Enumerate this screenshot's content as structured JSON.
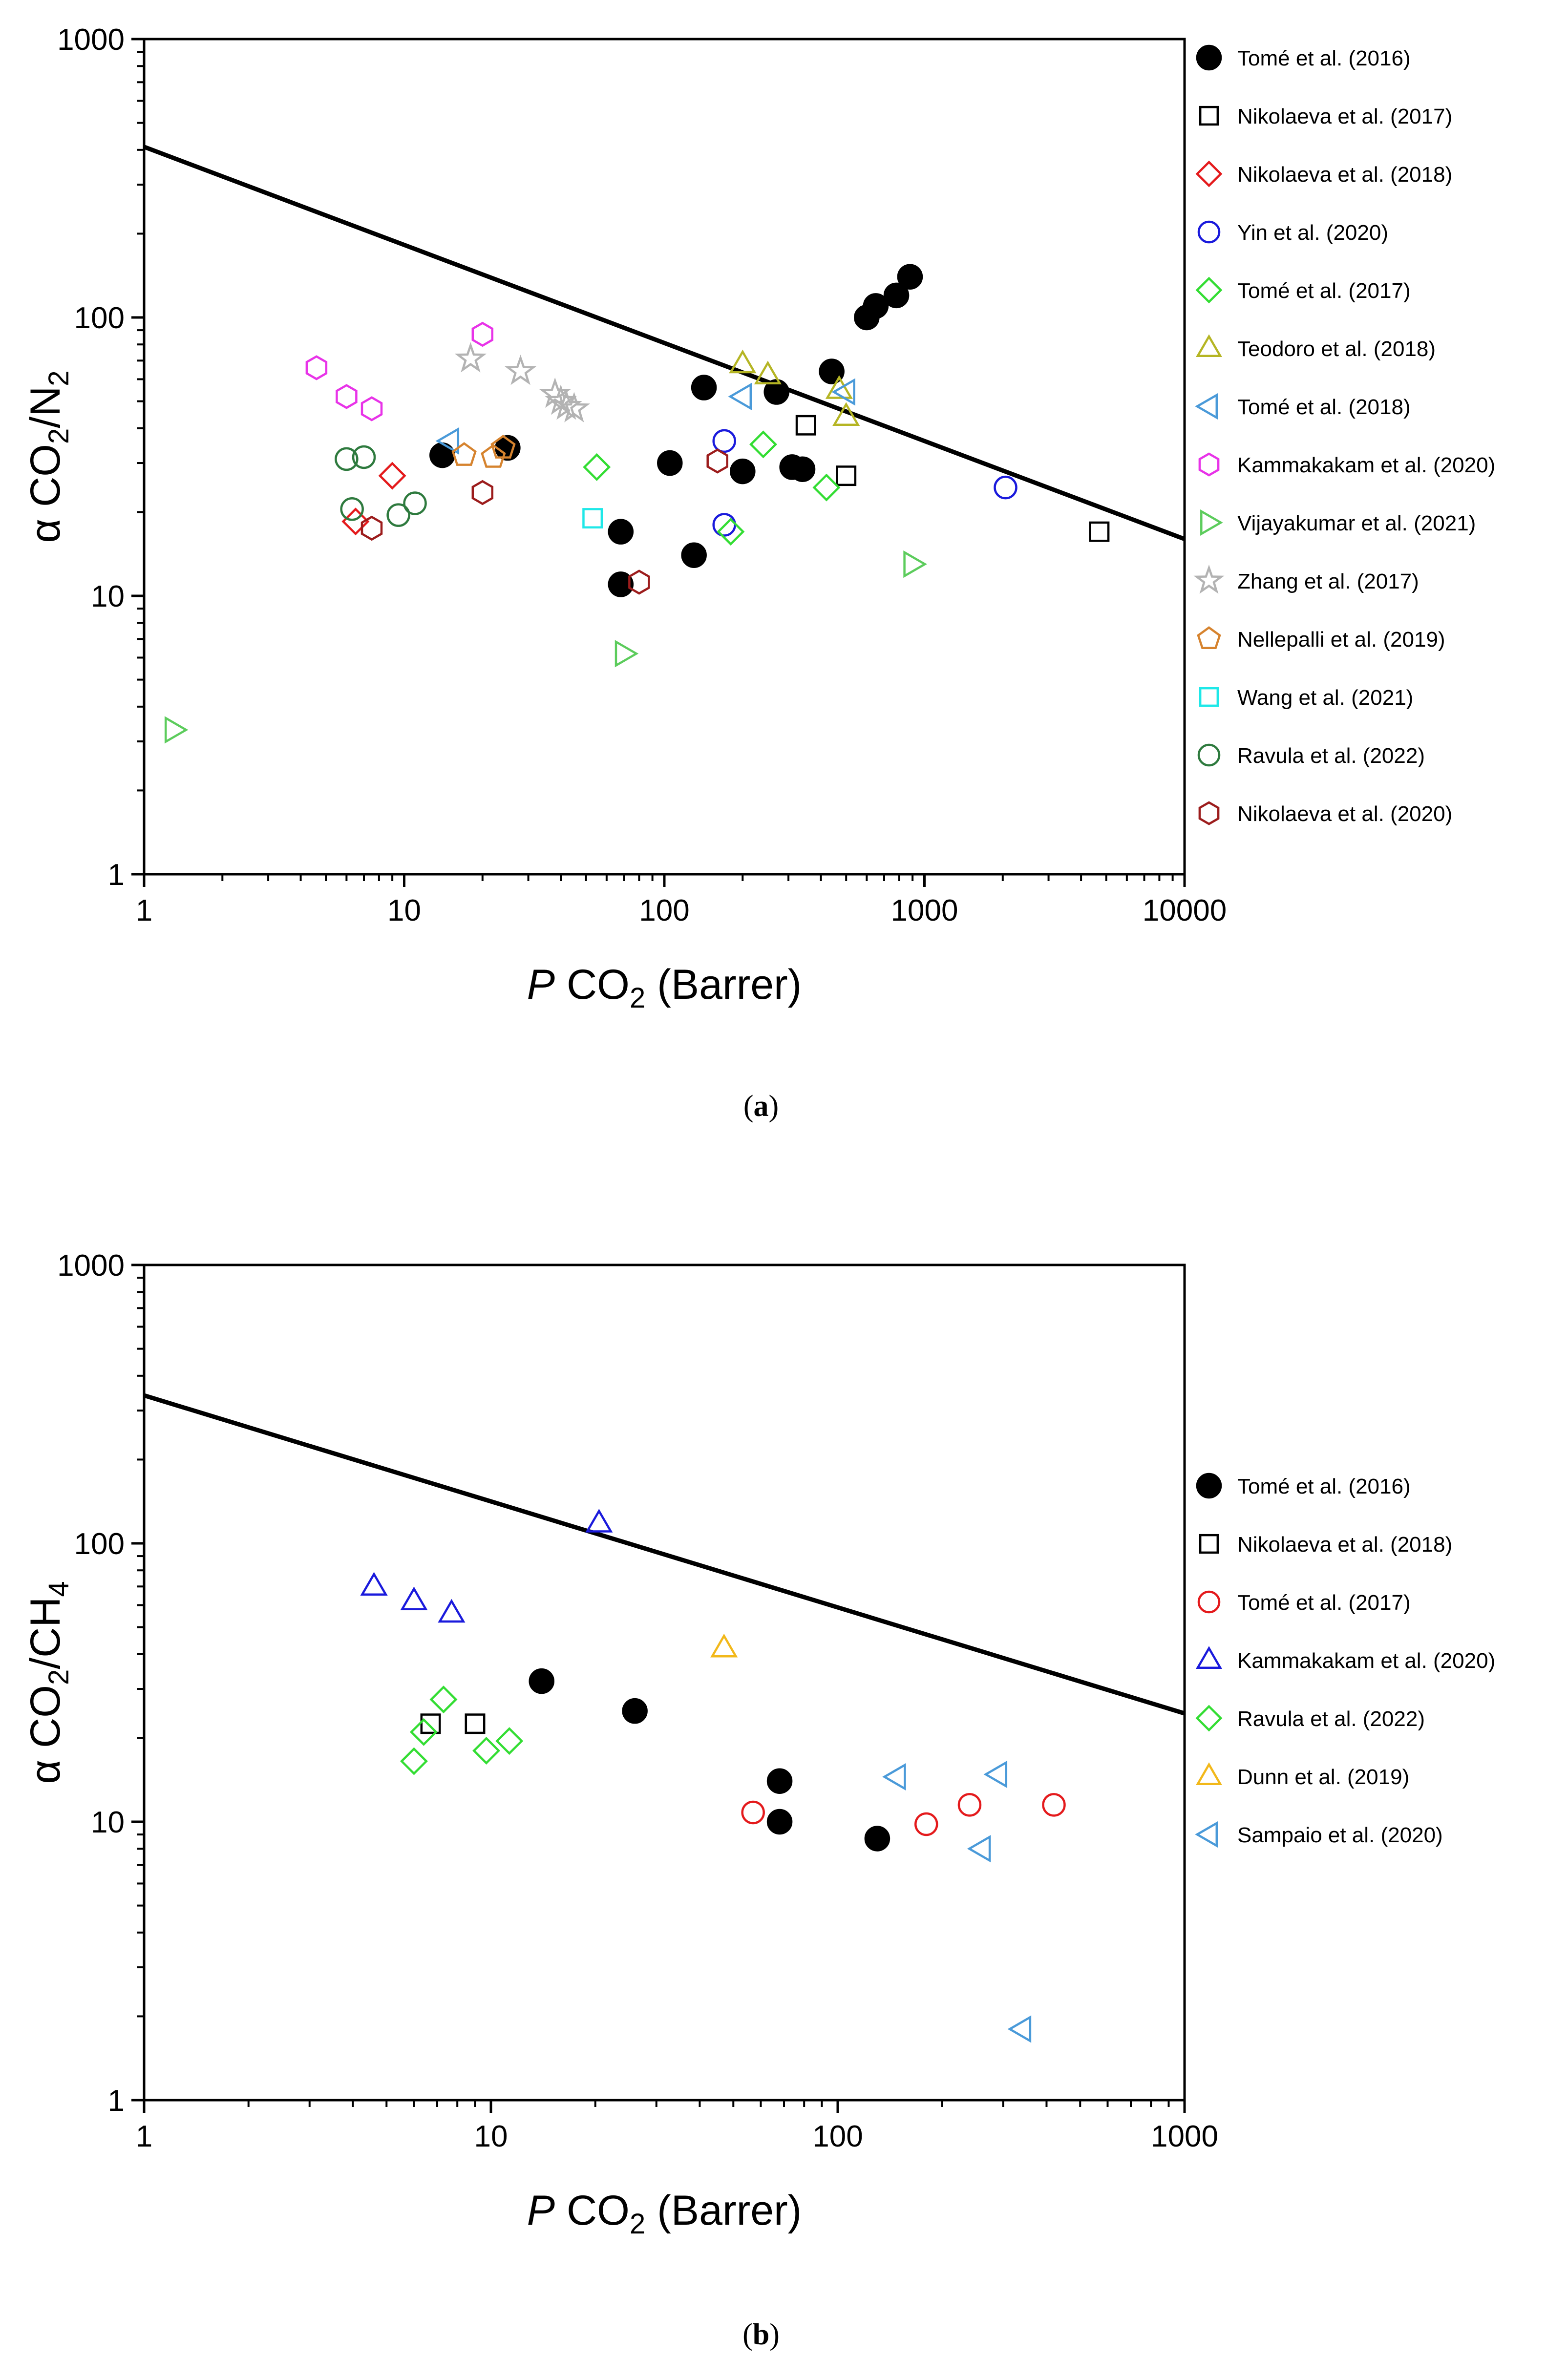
{
  "chart_data": [
    {
      "type": "scatter",
      "panel_label": "(a)",
      "panel_letter": "a",
      "xlabel": {
        "italic": "P",
        "main": " CO",
        "sub": "2",
        "rest": " (Barrer)"
      },
      "ylabel": {
        "prefix": "α CO",
        "sub1": "2",
        "mid": "/N",
        "sub2": "2"
      },
      "xscale": "log",
      "yscale": "log",
      "xlim": [
        1,
        10000
      ],
      "ylim": [
        1,
        1000
      ],
      "xticks": [
        1,
        10,
        100,
        1000,
        10000
      ],
      "xtick_labels": [
        "1",
        "10",
        "100",
        "1000",
        "10000"
      ],
      "yticks": [
        1,
        10,
        100,
        1000
      ],
      "ytick_labels": [
        "1",
        "10",
        "100",
        "1000"
      ],
      "upper_bound": [
        [
          1,
          410
        ],
        [
          10000,
          16
        ]
      ],
      "legend_position": "right, outside",
      "series": [
        {
          "name": "Tomé et al. (2016)",
          "marker": "circle",
          "color": "#000000",
          "filled": true,
          "points": [
            [
              14,
              32
            ],
            [
              25,
              34
            ],
            [
              68,
              17
            ],
            [
              68,
              11
            ],
            [
              105,
              30
            ],
            [
              130,
              14
            ],
            [
              142,
              56
            ],
            [
              200,
              28
            ],
            [
              270,
              54
            ],
            [
              310,
              29
            ],
            [
              340,
              28.5
            ],
            [
              440,
              64
            ],
            [
              600,
              100
            ],
            [
              650,
              110
            ],
            [
              780,
              120
            ],
            [
              880,
              140
            ]
          ]
        },
        {
          "name": "Nikolaeva et al. (2017)",
          "marker": "square",
          "color": "#000000",
          "filled": false,
          "points": [
            [
              350,
              41
            ],
            [
              500,
              27
            ],
            [
              4700,
              17
            ]
          ]
        },
        {
          "name": "Nikolaeva et al. (2018)",
          "marker": "diamond",
          "color": "#e41a1c",
          "filled": false,
          "points": [
            [
              6.5,
              18.5
            ],
            [
              9,
              27
            ]
          ]
        },
        {
          "name": "Yin et al. (2020)",
          "marker": "circle",
          "color": "#1a1adc",
          "filled": false,
          "points": [
            [
              170,
              36
            ],
            [
              170,
              18
            ],
            [
              2050,
              24.5
            ]
          ]
        },
        {
          "name": "Tomé et al. (2017)",
          "marker": "diamond",
          "color": "#33dd33",
          "filled": false,
          "points": [
            [
              55,
              29
            ],
            [
              180,
              17
            ],
            [
              240,
              35
            ],
            [
              420,
              24.5
            ]
          ]
        },
        {
          "name": "Teodoro et al. (2018)",
          "marker": "triangle-up",
          "color": "#b5b524",
          "filled": false,
          "points": [
            [
              200,
              68
            ],
            [
              250,
              62
            ],
            [
              470,
              55
            ],
            [
              500,
              44
            ]
          ]
        },
        {
          "name": "Tomé et al. (2018)",
          "marker": "triangle-left",
          "color": "#4a9ad9",
          "filled": false,
          "points": [
            [
              15,
              36
            ],
            [
              200,
              52
            ],
            [
              500,
              54
            ]
          ]
        },
        {
          "name": "Kammakakam et al. (2020)",
          "marker": "hexagon",
          "color": "#e833e8",
          "filled": false,
          "points": [
            [
              4.6,
              66
            ],
            [
              6,
              52
            ],
            [
              7.5,
              47
            ],
            [
              20,
              87
            ]
          ]
        },
        {
          "name": "Vijayakumar et al. (2021)",
          "marker": "triangle-right",
          "color": "#5ccc5c",
          "filled": false,
          "points": [
            [
              1.3,
              3.3
            ],
            [
              70,
              6.2
            ],
            [
              900,
              13
            ]
          ]
        },
        {
          "name": "Zhang et al. (2017)",
          "marker": "star",
          "color": "#b3b3b3",
          "filled": false,
          "points": [
            [
              18,
              71
            ],
            [
              28,
              64
            ],
            [
              38,
              53
            ],
            [
              40,
              50
            ],
            [
              42,
              48
            ],
            [
              45,
              47
            ]
          ]
        },
        {
          "name": "Nellepalli et al. (2019)",
          "marker": "pentagon",
          "color": "#d6832e",
          "filled": false,
          "points": [
            [
              17,
              32
            ],
            [
              22,
              31.5
            ],
            [
              24,
              34
            ]
          ]
        },
        {
          "name": "Wang et al. (2021)",
          "marker": "square",
          "color": "#1ee8e8",
          "filled": false,
          "points": [
            [
              53,
              19
            ]
          ]
        },
        {
          "name": "Ravula et al. (2022)",
          "marker": "circle",
          "color": "#2e7a3e",
          "filled": false,
          "points": [
            [
              6,
              31
            ],
            [
              7,
              31.5
            ],
            [
              6.3,
              20.5
            ],
            [
              9.5,
              19.5
            ],
            [
              11,
              21.5
            ]
          ]
        },
        {
          "name": "Nikolaeva et al. (2020)",
          "marker": "hexagon",
          "color": "#9c1c1c",
          "filled": false,
          "points": [
            [
              7.5,
              17.5
            ],
            [
              20,
              23.5
            ],
            [
              80,
              11.2
            ],
            [
              160,
              30.5
            ]
          ]
        }
      ]
    },
    {
      "type": "scatter",
      "panel_label": "(b)",
      "panel_letter": "b",
      "xlabel": {
        "italic": "P",
        "main": " CO",
        "sub": "2",
        "rest": " (Barrer)"
      },
      "ylabel": {
        "prefix": "α CO",
        "sub1": "2",
        "mid": "/CH",
        "sub2": "4"
      },
      "xscale": "log",
      "yscale": "log",
      "xlim": [
        1,
        1000
      ],
      "ylim": [
        1,
        1000
      ],
      "xticks": [
        1,
        10,
        100,
        1000
      ],
      "xtick_labels": [
        "1",
        "10",
        "100",
        "1000"
      ],
      "yticks": [
        1,
        10,
        100,
        1000
      ],
      "ytick_labels": [
        "1",
        "10",
        "100",
        "1000"
      ],
      "upper_bound": [
        [
          1,
          340
        ],
        [
          1000,
          24.5
        ]
      ],
      "legend_position": "right, outside",
      "series": [
        {
          "name": "Tomé et al. (2016)",
          "marker": "circle",
          "color": "#000000",
          "filled": true,
          "points": [
            [
              14,
              32
            ],
            [
              26,
              25
            ],
            [
              68,
              14
            ],
            [
              68,
              10
            ],
            [
              130,
              8.7
            ]
          ]
        },
        {
          "name": "Nikolaeva et al. (2018)",
          "marker": "square",
          "color": "#000000",
          "filled": false,
          "points": [
            [
              6.7,
              22.5
            ],
            [
              9,
              22.5
            ]
          ]
        },
        {
          "name": "Tomé et al. (2017)",
          "marker": "circle",
          "color": "#e41a1c",
          "filled": false,
          "points": [
            [
              57,
              10.8
            ],
            [
              180,
              9.8
            ],
            [
              240,
              11.5
            ],
            [
              420,
              11.5
            ]
          ]
        },
        {
          "name": "Kammakakam et al. (2020)",
          "marker": "triangle-up",
          "color": "#1a1adc",
          "filled": false,
          "points": [
            [
              4.6,
              70
            ],
            [
              6,
              62
            ],
            [
              7.7,
              56
            ],
            [
              20.5,
              118
            ]
          ]
        },
        {
          "name": "Ravula et al. (2022)",
          "marker": "diamond",
          "color": "#33dd33",
          "filled": false,
          "points": [
            [
              6,
              16.5
            ],
            [
              6.4,
              21
            ],
            [
              7.3,
              27.5
            ],
            [
              9.7,
              18
            ],
            [
              11.3,
              19.5
            ]
          ]
        },
        {
          "name": "Dunn et al. (2019)",
          "marker": "triangle-up",
          "color": "#f2b81a",
          "filled": false,
          "points": [
            [
              47,
              42
            ]
          ]
        },
        {
          "name": "Sampaio et al. (2020)",
          "marker": "triangle-left",
          "color": "#4a9ad9",
          "filled": false,
          "points": [
            [
              148,
              14.5
            ],
            [
              290,
              14.8
            ],
            [
              260,
              8
            ],
            [
              340,
              1.8
            ]
          ]
        }
      ]
    }
  ]
}
